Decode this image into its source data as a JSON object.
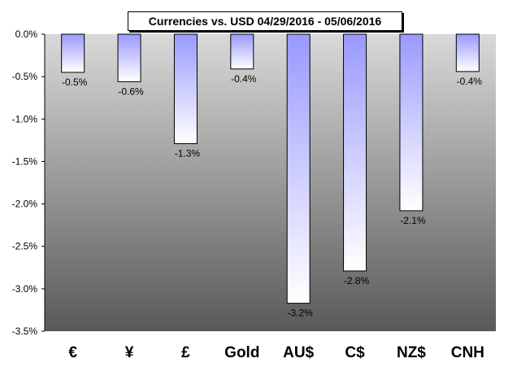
{
  "chart_data": {
    "type": "bar",
    "title": "Currencies vs. USD 04/29/2016 - 05/06/2016",
    "categories": [
      "€",
      "¥",
      "£",
      "Gold",
      "AU$",
      "C$",
      "NZ$",
      "CNH"
    ],
    "values": [
      -0.45,
      -0.56,
      -1.29,
      -0.41,
      -3.17,
      -2.79,
      -2.08,
      -0.44
    ],
    "data_labels": [
      "-0.5%",
      "-0.6%",
      "-1.3%",
      "-0.4%",
      "-3.2%",
      "-2.8%",
      "-2.1%",
      "-0.4%"
    ],
    "yticks": [
      "0.0%",
      "-0.5%",
      "-1.0%",
      "-1.5%",
      "-2.0%",
      "-2.5%",
      "-3.0%",
      "-3.5%"
    ],
    "ylim": [
      -3.5,
      0
    ],
    "xlabel": "",
    "ylabel": "",
    "grid": false,
    "legend": "none",
    "colors": {
      "plot_top": "#d9d9d9",
      "plot_bottom": "#595959",
      "bar_top": "#9999ff",
      "bar_bottom": "#ffffff",
      "bar_border": "#000000"
    }
  }
}
